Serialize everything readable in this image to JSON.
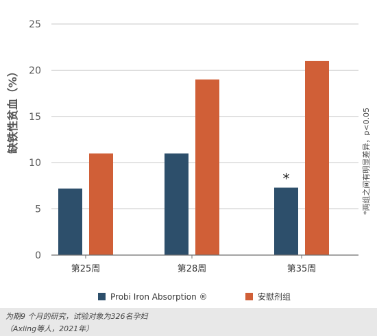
{
  "chart_data": {
    "type": "bar",
    "ylabel": "缺铁性贫血（%）",
    "ylim": [
      0,
      25
    ],
    "yticks": [
      0,
      5,
      10,
      15,
      20,
      25
    ],
    "categories": [
      "第25周",
      "第28周",
      "第35周"
    ],
    "series": [
      {
        "name": "Probi  Iron Absorption ®",
        "color": "#2d4f6b",
        "values": [
          7.2,
          11.0,
          7.3
        ]
      },
      {
        "name": "安慰剂组",
        "color": "#d05f37",
        "values": [
          11.0,
          19.0,
          21.0
        ]
      }
    ],
    "annotation": {
      "text": "*",
      "category": "第35周",
      "series": "Probi  Iron Absorption ®"
    },
    "side_note": "*两组之间有明显差异，p<0.05",
    "legend_position": "bottom",
    "grid": true
  },
  "footnote": {
    "line1": "为期9 个月的研究，试验对象为326名孕妇",
    "line2": "（Axling等人，2021年）"
  }
}
